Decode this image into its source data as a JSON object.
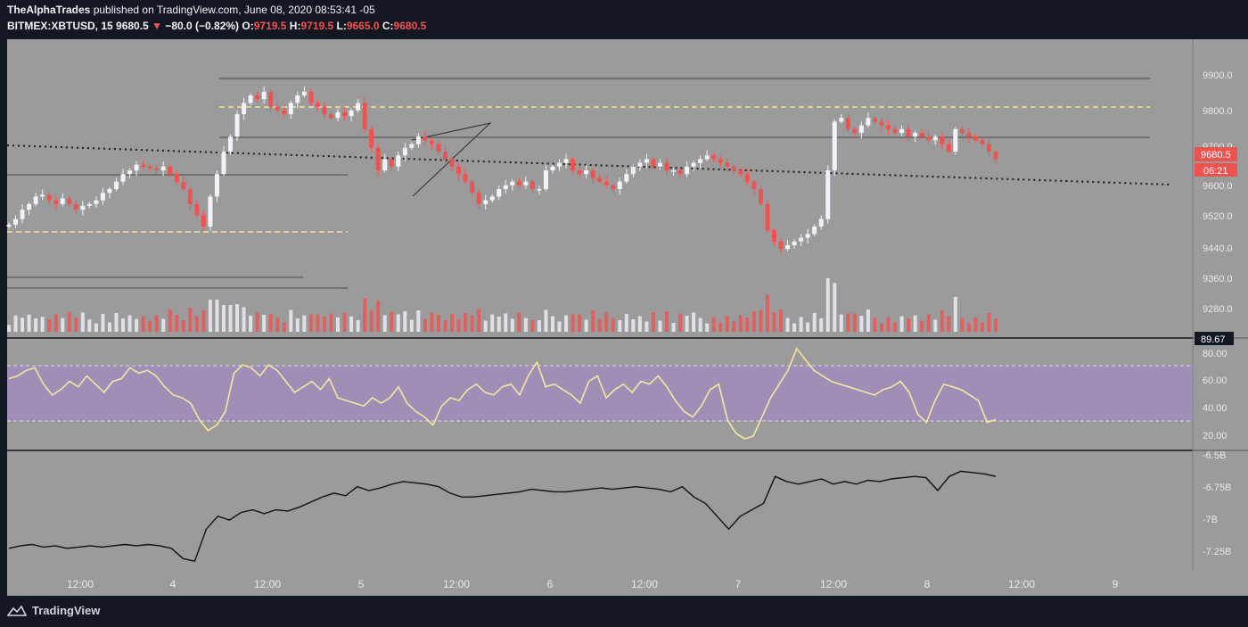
{
  "header": {
    "publisher": "TheAlphaTrades",
    "published_on": "published on TradingView.com, June 08, 2020 08:53:41 -05",
    "symbol": "BITMEX:XBTUSD, 15",
    "price": "9680.5",
    "change_arrow": "▼",
    "change": "−80.0 (−0.82%)",
    "o_label": "O:",
    "o_value": "9719.5",
    "h_label": "H:",
    "h_value": "9719.5",
    "l_label": "L:",
    "l_value": "9665.0",
    "c_label": "C:",
    "c_value": "9680.5"
  },
  "price_axis": {
    "ticks": [
      "9900.0",
      "9800.0",
      "9700.0",
      "9600.0",
      "9520.0",
      "9440.0",
      "9360.0",
      "9280.0"
    ],
    "current_price": "9680.5",
    "countdown": "06:21"
  },
  "rsi_axis": {
    "ticks": [
      "80.00",
      "60.00",
      "40.00",
      "20.00"
    ],
    "current": "89.67"
  },
  "obv_axis": {
    "ticks": [
      "-6.5B",
      "-6.75B",
      "-7B",
      "-7.25B"
    ]
  },
  "time_axis": {
    "ticks": [
      "12:00",
      "4",
      "12:00",
      "5",
      "12:00",
      "6",
      "12:00",
      "7",
      "12:00",
      "8",
      "12:00",
      "9"
    ]
  },
  "footer": {
    "brand": "TradingView"
  },
  "colors": {
    "up": "#f0f3fa",
    "down": "#ef5350",
    "rsi_line": "#f5e6a3",
    "rsi_band": "#9f8eb5",
    "level_dashed": "#f6e4a0",
    "pane_bg": "#9b9b9b",
    "badge_red": "#ef5350"
  },
  "chart_data": {
    "type": "candlestick",
    "series": [
      {
        "name": "price",
        "close": [
          9505,
          9520,
          9545,
          9560,
          9580,
          9585,
          9570,
          9560,
          9575,
          9560,
          9545,
          9555,
          9560,
          9570,
          9590,
          9600,
          9620,
          9640,
          9650,
          9665,
          9660,
          9655,
          9650,
          9660,
          9640,
          9620,
          9600,
          9560,
          9530,
          9500,
          9580,
          9640,
          9700,
          9740,
          9800,
          9830,
          9850,
          9840,
          9860,
          9820,
          9810,
          9800,
          9830,
          9850,
          9860,
          9830,
          9820,
          9800,
          9790,
          9805,
          9795,
          9810,
          9830,
          9760,
          9710,
          9650,
          9680,
          9660,
          9690,
          9710,
          9720,
          9740,
          9730,
          9720,
          9700,
          9680,
          9660,
          9640,
          9620,
          9590,
          9560,
          9570,
          9580,
          9600,
          9610,
          9620,
          9610,
          9620,
          9600,
          9600,
          9650,
          9660,
          9670,
          9680,
          9650,
          9640,
          9650,
          9630,
          9620,
          9610,
          9600,
          9620,
          9640,
          9660,
          9670,
          9680,
          9660,
          9670,
          9650,
          9650,
          9640,
          9660,
          9670,
          9680,
          9690,
          9680,
          9670,
          9660,
          9650,
          9640,
          9620,
          9600,
          9560,
          9490,
          9460,
          9440,
          9450,
          9460,
          9470,
          9480,
          9500,
          9520,
          9650,
          9780,
          9790,
          9760,
          9750,
          9770,
          9790,
          9780,
          9770,
          9760,
          9750,
          9760,
          9740,
          9750,
          9740,
          9730,
          9740,
          9720,
          9700,
          9760,
          9750,
          9740,
          9730,
          9720,
          9700,
          9680
        ]
      },
      {
        "name": "RSI",
        "values": [
          64,
          66,
          70,
          72,
          60,
          52,
          56,
          62,
          58,
          66,
          60,
          54,
          62,
          64,
          72,
          68,
          70,
          66,
          58,
          52,
          50,
          46,
          34,
          26,
          30,
          40,
          68,
          74,
          72,
          66,
          74,
          70,
          62,
          54,
          58,
          62,
          56,
          64,
          50,
          48,
          46,
          44,
          50,
          46,
          50,
          58,
          46,
          40,
          36,
          30,
          44,
          50,
          48,
          56,
          60,
          54,
          52,
          58,
          60,
          52,
          66,
          76,
          58,
          60,
          56,
          52,
          46,
          62,
          66,
          50,
          56,
          60,
          54,
          62,
          60,
          66,
          58,
          48,
          40,
          36,
          44,
          56,
          60,
          34,
          24,
          20,
          22,
          36,
          50,
          60,
          70,
          86,
          78,
          70,
          66,
          62,
          60,
          58,
          56,
          54,
          52,
          56,
          58,
          62,
          54,
          38,
          32,
          48,
          60,
          58,
          56,
          52,
          48,
          32,
          34
        ]
      },
      {
        "name": "OBV",
        "values": [
          -7.2,
          -7.18,
          -7.17,
          -7.19,
          -7.18,
          -7.2,
          -7.19,
          -7.18,
          -7.19,
          -7.18,
          -7.17,
          -7.18,
          -7.17,
          -7.18,
          -7.2,
          -7.28,
          -7.3,
          -7.05,
          -6.95,
          -6.98,
          -6.92,
          -6.9,
          -6.93,
          -6.9,
          -6.91,
          -6.88,
          -6.84,
          -6.8,
          -6.77,
          -6.79,
          -6.72,
          -6.75,
          -6.73,
          -6.7,
          -6.68,
          -6.69,
          -6.7,
          -6.72,
          -6.77,
          -6.8,
          -6.8,
          -6.79,
          -6.78,
          -6.77,
          -6.76,
          -6.74,
          -6.75,
          -6.76,
          -6.76,
          -6.75,
          -6.74,
          -6.73,
          -6.74,
          -6.73,
          -6.72,
          -6.73,
          -6.74,
          -6.76,
          -6.72,
          -6.8,
          -6.85,
          -6.95,
          -7.05,
          -6.95,
          -6.9,
          -6.85,
          -6.64,
          -6.68,
          -6.7,
          -6.68,
          -6.66,
          -6.7,
          -6.68,
          -6.7,
          -6.67,
          -6.68,
          -6.66,
          -6.65,
          -6.64,
          -6.65,
          -6.75,
          -6.64,
          -6.6,
          -6.61,
          -6.62,
          -6.64
        ]
      }
    ]
  }
}
